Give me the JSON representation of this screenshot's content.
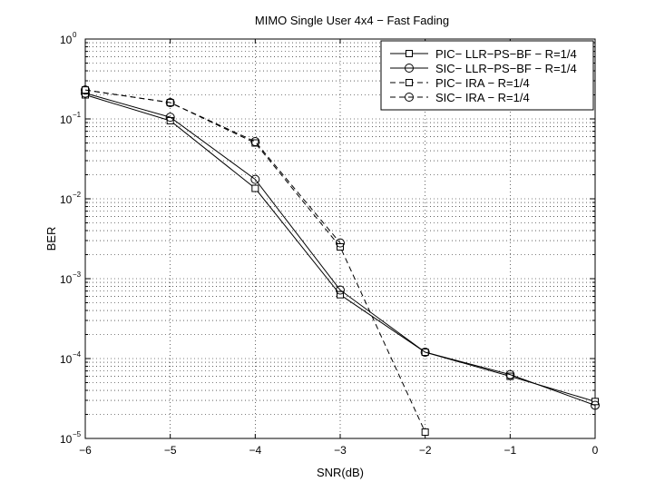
{
  "chart_data": {
    "type": "line",
    "title": "MIMO Single User 4x4 − Fast Fading",
    "xlabel": "SNR(dB)",
    "ylabel": "BER",
    "xlim": [
      -6,
      0
    ],
    "ylim": [
      1e-05,
      1
    ],
    "yscale": "log",
    "grid": true,
    "legend_position": "top-right",
    "x_ticks": [
      {
        "value": -6,
        "label": "−6"
      },
      {
        "value": -5,
        "label": "−5"
      },
      {
        "value": -4,
        "label": "−4"
      },
      {
        "value": -3,
        "label": "−3"
      },
      {
        "value": -2,
        "label": "−2"
      },
      {
        "value": -1,
        "label": "−1"
      },
      {
        "value": 0,
        "label": "0"
      }
    ],
    "y_ticks": [
      {
        "value": 1,
        "base": "10",
        "exp": "0"
      },
      {
        "value": 0.1,
        "base": "10",
        "exp": "−1"
      },
      {
        "value": 0.01,
        "base": "10",
        "exp": "−2"
      },
      {
        "value": 0.001,
        "base": "10",
        "exp": "−3"
      },
      {
        "value": 0.0001,
        "base": "10",
        "exp": "−4"
      },
      {
        "value": 1e-05,
        "base": "10",
        "exp": "−5"
      }
    ],
    "series": [
      {
        "name": "PIC− LLR−PS−BF − R=1/4",
        "marker": "square",
        "line": "solid",
        "x": [
          -6,
          -5,
          -4,
          -3,
          -2,
          -1,
          0
        ],
        "y": [
          0.2,
          0.095,
          0.0135,
          0.00063,
          0.00012,
          6e-05,
          2.9e-05
        ]
      },
      {
        "name": "SIC− LLR−PS−BF − R=1/4",
        "marker": "circle",
        "line": "solid",
        "x": [
          -6,
          -5,
          -4,
          -3,
          -2,
          -1,
          0
        ],
        "y": [
          0.21,
          0.105,
          0.0175,
          0.00072,
          0.00012,
          6.3e-05,
          2.6e-05
        ]
      },
      {
        "name": "PIC− IRA − R=1/4",
        "marker": "square",
        "line": "dashed",
        "x": [
          -6,
          -5,
          -4,
          -3,
          -2
        ],
        "y": [
          0.23,
          0.16,
          0.05,
          0.0025,
          1.2e-05
        ]
      },
      {
        "name": "SIC− IRA − R=1/4",
        "marker": "circle",
        "line": "dashed",
        "x": [
          -6,
          -5,
          -4,
          -3
        ],
        "y": [
          0.23,
          0.16,
          0.052,
          0.0028
        ]
      }
    ]
  }
}
